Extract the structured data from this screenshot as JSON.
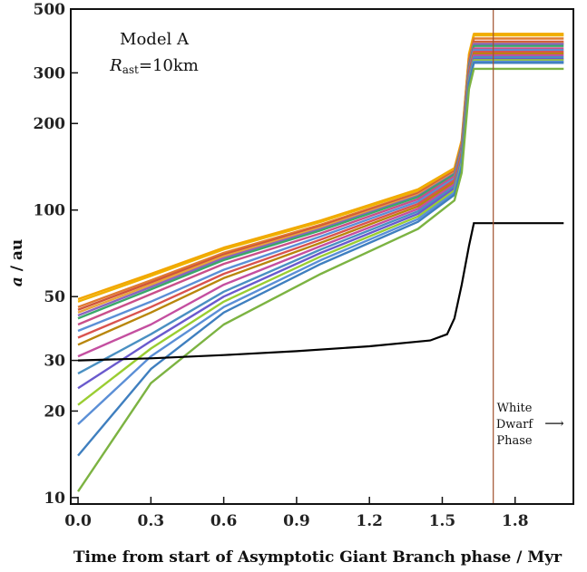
{
  "chart_data": {
    "type": "line",
    "title": "",
    "xlabel": "Time from start of Asymptotic Giant Branch phase / Myr",
    "ylabel_var": "a",
    "ylabel_unit": " / au",
    "xlim": [
      -0.03,
      2.04
    ],
    "ylim": [
      9.5,
      500
    ],
    "yscale": "log",
    "xticks": [
      0.0,
      0.3,
      0.6,
      0.9,
      1.2,
      1.5,
      1.8
    ],
    "xtick_labels": [
      "0.0",
      "0.3",
      "0.6",
      "0.9",
      "1.2",
      "1.5",
      "1.8"
    ],
    "yticks": [
      10,
      20,
      30,
      50,
      100,
      200,
      300,
      500
    ],
    "ytick_labels": [
      "10",
      "20",
      "30",
      "50",
      "100",
      "200",
      "300",
      "500"
    ],
    "grid": false,
    "annotations": {
      "model": "Model A",
      "radius_var": "R",
      "radius_sub": "ast",
      "radius_value": "=10km",
      "wd_line1": "White",
      "wd_line2": "Dwarf",
      "wd_line3": "Phase",
      "wd_arrow": "⟶"
    },
    "white_dwarf_line_x": 1.71,
    "planet_orbit": {
      "color": "#000000",
      "x": [
        0.0,
        0.3,
        0.6,
        0.9,
        1.2,
        1.45,
        1.52,
        1.55,
        1.58,
        1.61,
        1.63,
        1.7,
        2.0
      ],
      "y": [
        30,
        30.5,
        31.3,
        32.3,
        33.6,
        35.2,
        37.0,
        42,
        55,
        75,
        90,
        90,
        90
      ]
    },
    "asteroid_orbits": [
      {
        "color": "#f2a600",
        "a0": 49,
        "af": 410,
        "x": [
          0,
          0.3,
          0.6,
          1.0,
          1.4,
          1.55
        ],
        "y": [
          49,
          60,
          74,
          92,
          118,
          140
        ]
      },
      {
        "color": "#efb100",
        "a0": 48,
        "af": 405,
        "x": [
          0,
          0.3,
          0.6,
          1.0,
          1.4,
          1.55
        ],
        "y": [
          48,
          59,
          73,
          91,
          117,
          139
        ]
      },
      {
        "color": "#e07a30",
        "a0": 46,
        "af": 395,
        "x": [
          0,
          0.3,
          0.6,
          1.0,
          1.4,
          1.55
        ],
        "y": [
          46,
          57,
          71,
          89,
          115,
          137
        ]
      },
      {
        "color": "#d0553a",
        "a0": 45,
        "af": 385,
        "x": [
          0,
          0.3,
          0.6,
          1.0,
          1.4,
          1.55
        ],
        "y": [
          45,
          56,
          70,
          88,
          114,
          136
        ]
      },
      {
        "color": "#e8a43a",
        "a0": 44,
        "af": 380,
        "x": [
          0,
          0.3,
          0.6,
          1.0,
          1.4,
          1.55
        ],
        "y": [
          44,
          55,
          69,
          87,
          113,
          135
        ]
      },
      {
        "color": "#8a63c0",
        "a0": 43,
        "af": 378,
        "x": [
          0,
          0.3,
          0.6,
          1.0,
          1.4,
          1.55
        ],
        "y": [
          43,
          54,
          68,
          86,
          112,
          134
        ]
      },
      {
        "color": "#3aa86a",
        "a0": 42,
        "af": 372,
        "x": [
          0,
          0.3,
          0.6,
          1.0,
          1.4,
          1.55
        ],
        "y": [
          42,
          53,
          67,
          85,
          111,
          133
        ]
      },
      {
        "color": "#c94f8a",
        "a0": 40,
        "af": 365,
        "x": [
          0,
          0.3,
          0.6,
          1.0,
          1.4,
          1.55
        ],
        "y": [
          40,
          51,
          65,
          83,
          109,
          131
        ]
      },
      {
        "color": "#5b8fd6",
        "a0": 38,
        "af": 360,
        "x": [
          0,
          0.3,
          0.6,
          1.0,
          1.4,
          1.55
        ],
        "y": [
          38,
          48,
          62,
          81,
          107,
          129
        ]
      },
      {
        "color": "#d9534f",
        "a0": 36,
        "af": 355,
        "x": [
          0,
          0.3,
          0.6,
          1.0,
          1.4,
          1.55
        ],
        "y": [
          36,
          46,
          60,
          79,
          105,
          127
        ]
      },
      {
        "color": "#b8860b",
        "a0": 34,
        "af": 350,
        "x": [
          0,
          0.3,
          0.6,
          1.0,
          1.4,
          1.55
        ],
        "y": [
          34,
          44,
          58,
          77,
          103,
          125
        ]
      },
      {
        "color": "#c44fa0",
        "a0": 31,
        "af": 345,
        "x": [
          0,
          0.3,
          0.6,
          1.0,
          1.4,
          1.55
        ],
        "y": [
          31,
          40,
          55,
          75,
          101,
          123
        ]
      },
      {
        "color": "#4a90c2",
        "a0": 27,
        "af": 340,
        "x": [
          0,
          0.3,
          0.6,
          1.0,
          1.4,
          1.55
        ],
        "y": [
          27,
          37,
          52,
          73,
          99,
          121
        ]
      },
      {
        "color": "#6a5acd",
        "a0": 24,
        "af": 335,
        "x": [
          0,
          0.3,
          0.6,
          1.0,
          1.4,
          1.55
        ],
        "y": [
          24,
          35,
          50,
          71,
          97,
          119
        ]
      },
      {
        "color": "#9acd32",
        "a0": 21,
        "af": 332,
        "x": [
          0,
          0.3,
          0.6,
          1.0,
          1.4,
          1.55
        ],
        "y": [
          21,
          33,
          48,
          69,
          95,
          117
        ]
      },
      {
        "color": "#5b8fd6",
        "a0": 18,
        "af": 328,
        "x": [
          0,
          0.3,
          0.6,
          1.0,
          1.4,
          1.55
        ],
        "y": [
          18,
          31,
          46,
          67,
          93,
          115
        ]
      },
      {
        "color": "#3f7fbf",
        "a0": 14,
        "af": 325,
        "x": [
          0,
          0.3,
          0.6,
          1.0,
          1.4,
          1.55
        ],
        "y": [
          14,
          28,
          44,
          65,
          91,
          113
        ]
      },
      {
        "color": "#7cb342",
        "a0": 10.5,
        "af": 310,
        "x": [
          0,
          0.3,
          0.6,
          1.0,
          1.4,
          1.55
        ],
        "y": [
          10.5,
          25,
          40,
          60,
          86,
          108
        ]
      }
    ]
  }
}
